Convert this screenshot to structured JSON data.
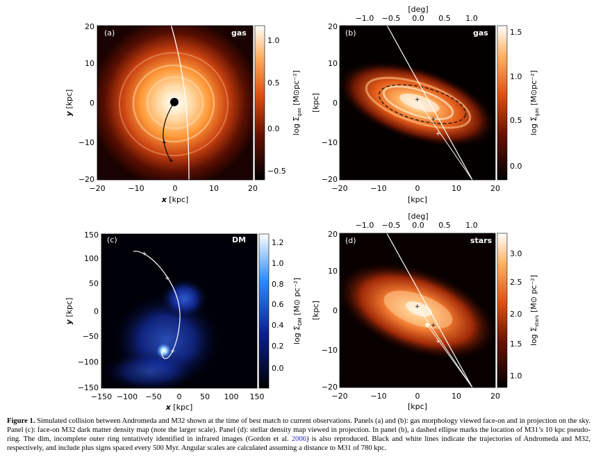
{
  "panels": [
    {
      "letter": "(a)",
      "tag": "gas",
      "xlabel_sym": "x",
      "xlabel_unit": " [kpc]",
      "ylabel_sym": "y",
      "ylabel_unit": " [kpc]",
      "xticks": [
        "−20",
        "−10",
        "0",
        "10",
        "20"
      ],
      "yticks": [
        "20",
        "10",
        "0",
        "−10",
        "−20"
      ],
      "cbar_ticks": [
        "1.0",
        "0.5",
        "0.0",
        "−0.5"
      ],
      "cbar_label": "log Σ",
      "cbar_sub": "gas",
      "cbar_unit": " [M⊙pc⁻²]"
    },
    {
      "letter": "(b)",
      "tag": "gas",
      "xlabel_unit": "[kpc]",
      "ylabel_unit": "[kpc]",
      "top_label": "[deg]",
      "top_ticks": [
        "−1.0",
        "−0.5",
        "0.0",
        "0.5",
        "1.0"
      ],
      "xticks": [
        "−20",
        "−10",
        "0",
        "10",
        "20"
      ],
      "yticks": [
        "20",
        "10",
        "0",
        "−10",
        "−20"
      ],
      "cbar_ticks": [
        "1.5",
        "1.0",
        "0.5",
        "0.0"
      ],
      "cbar_label": "log Σ",
      "cbar_sub": "gas",
      "cbar_unit": " [M⊙pc⁻²]"
    },
    {
      "letter": "(c)",
      "tag": "DM",
      "xlabel_sym": "x",
      "xlabel_unit": " [kpc]",
      "ylabel_sym": "y",
      "ylabel_unit": " [kpc]",
      "xticks": [
        "−150",
        "−100",
        "−50",
        "0",
        "50",
        "100",
        "150"
      ],
      "yticks": [
        "150",
        "100",
        "50",
        "0",
        "−50",
        "−100",
        "−150"
      ],
      "cbar_ticks": [
        "1.2",
        "1.0",
        "0.8",
        "0.6",
        "0.4",
        "0.2",
        "0.0"
      ],
      "cbar_label": "log Σ",
      "cbar_sub": "DM",
      "cbar_unit": " [M⊙ pc⁻²]"
    },
    {
      "letter": "(d)",
      "tag": "stars",
      "xlabel_unit": "[kpc]",
      "ylabel_unit": "[kpc]",
      "top_label": "[deg]",
      "top_ticks": [
        "−1.0",
        "−0.5",
        "0.0",
        "0.5",
        "1.0"
      ],
      "xticks": [
        "−20",
        "−10",
        "0",
        "10",
        "20"
      ],
      "yticks": [
        "20",
        "10",
        "0",
        "−10",
        "−20"
      ],
      "cbar_ticks": [
        "3.0",
        "2.5",
        "2.0",
        "1.5",
        "1.0"
      ],
      "cbar_label": "log Σ",
      "cbar_sub": "stars",
      "cbar_unit": " [M⊙ pc⁻²]"
    }
  ],
  "caption": {
    "lead": "Figure 1.",
    "text_1": " Simulated collision between Andromeda and M32 shown at the time of best match to current observations. Panels (a) and (b): gas morphology viewed face-on and in projection on the sky. Panel (c): face-on M32 dark matter density map (note the larger scale). Panel (d): stellar density map viewed in projection. In panel (b), a dashed ellipse marks the location of M31’s 10 kpc pseudo-ring. The dim, incomplete outer ring tentatively identified in infrared images (Gordon et al. ",
    "cite": "2006",
    "text_2": ") is also reproduced. Black and white lines indicate the trajectories of Andromeda and M32, respectively, and include plus signs spaced every 500 Myr. Angular scales are calculated assuming a distance to M31 of 780 kpc."
  }
}
